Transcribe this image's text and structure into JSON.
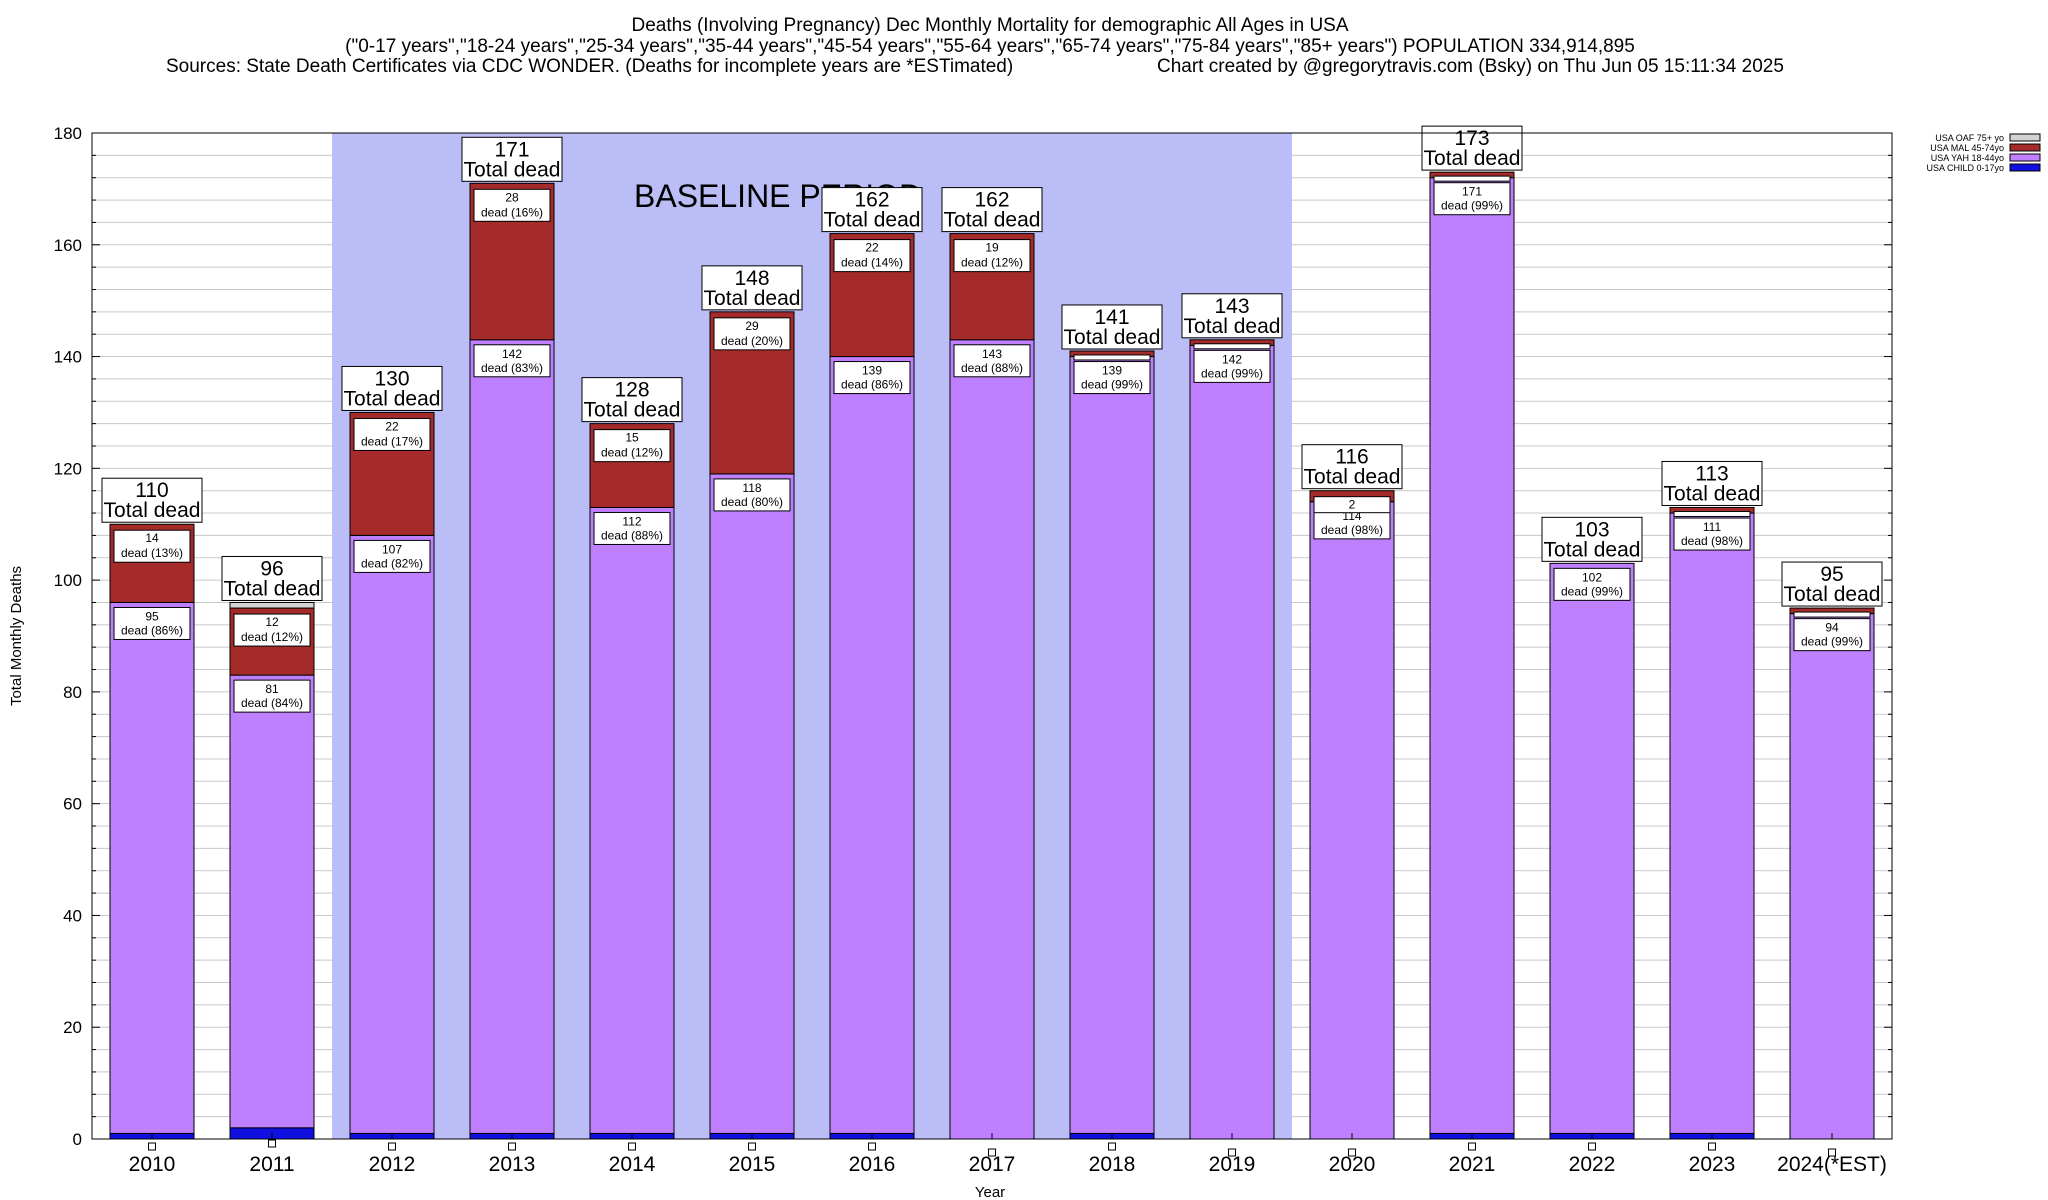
{
  "header": {
    "title_line1": "Deaths (Involving Pregnancy) Dec Monthly Mortality for demographic All Ages in USA",
    "title_line2": "(\"0-17 years\",\"18-24 years\",\"25-34 years\",\"35-44 years\",\"45-54 years\",\"55-64 years\",\"65-74 years\",\"75-84 years\",\"85+ years\") POPULATION 334,914,895",
    "sources": "Sources: State Death Certificates via CDC WONDER. (Deaths for incomplete years are *ESTimated)",
    "credit": "Chart created by @gregorytravis.com (Bsky) on Thu Jun 05 15:11:34 2025"
  },
  "chart_data": {
    "type": "bar",
    "stacked": true,
    "xlabel": "Year",
    "ylabel": "Total Monthly Deaths",
    "ylim": [
      0,
      180
    ],
    "y_major_ticks": [
      0,
      20,
      40,
      60,
      80,
      100,
      120,
      140,
      160,
      180
    ],
    "y_minor_step": 4,
    "grid": true,
    "legend_position": "top-right",
    "categories": [
      "2010",
      "2011",
      "2012",
      "2013",
      "2014",
      "2015",
      "2016",
      "2017",
      "2018",
      "2019",
      "2020",
      "2021",
      "2022",
      "2023",
      "2024(*EST)"
    ],
    "series": [
      {
        "name": "USA CHILD 0-17yo",
        "color": "#1010e0",
        "values": [
          1,
          2,
          1,
          1,
          1,
          1,
          1,
          0,
          1,
          0,
          0,
          1,
          1,
          1,
          0
        ]
      },
      {
        "name": "USA YAH 18-44yo",
        "color": "#bf80ff",
        "values": [
          95,
          81,
          107,
          142,
          112,
          118,
          139,
          143,
          139,
          142,
          114,
          171,
          102,
          111,
          94
        ]
      },
      {
        "name": "USA MAL 45-74yo",
        "color": "#a52a2a",
        "values": [
          14,
          12,
          22,
          28,
          15,
          29,
          22,
          19,
          1,
          1,
          2,
          1,
          0,
          1,
          1
        ]
      },
      {
        "name": "USA OAF 75+ yo",
        "color": "#d3d3d3",
        "values": [
          0,
          1,
          0,
          0,
          0,
          0,
          0,
          0,
          0,
          0,
          0,
          0,
          0,
          0,
          0
        ]
      }
    ],
    "totals": [
      110,
      96,
      130,
      171,
      128,
      148,
      162,
      162,
      141,
      143,
      116,
      173,
      103,
      113,
      95
    ],
    "total_label_suffix": "Total dead",
    "segment_labels": {
      "yah": [
        "95",
        "81",
        "107",
        "142",
        "112",
        "118",
        "139",
        "143",
        "139",
        "142",
        "114",
        "171",
        "102",
        "111",
        "94"
      ],
      "yah_pct": [
        "dead (86%)",
        "dead (84%)",
        "dead (82%)",
        "dead (83%)",
        "dead (88%)",
        "dead (80%)",
        "dead (86%)",
        "dead (88%)",
        "dead (99%)",
        "dead (99%)",
        "dead (98%)",
        "dead (99%)",
        "dead (99%)",
        "dead (98%)",
        "dead (99%)"
      ],
      "mal": [
        "14",
        "12",
        "22",
        "28",
        "15",
        "29",
        "22",
        "19",
        "",
        "",
        "2",
        "",
        "",
        "",
        ""
      ],
      "mal_pct": [
        "dead (13%)",
        "dead (12%)",
        "dead (17%)",
        "dead (16%)",
        "dead (12%)",
        "dead (20%)",
        "dead (14%)",
        "dead (12%)",
        "",
        "",
        "",
        "",
        "",
        "",
        ""
      ]
    },
    "baseline": {
      "label": "BASELINE PERIOD",
      "from": "2012",
      "to": "2019",
      "color": "#bbbdf6"
    }
  }
}
